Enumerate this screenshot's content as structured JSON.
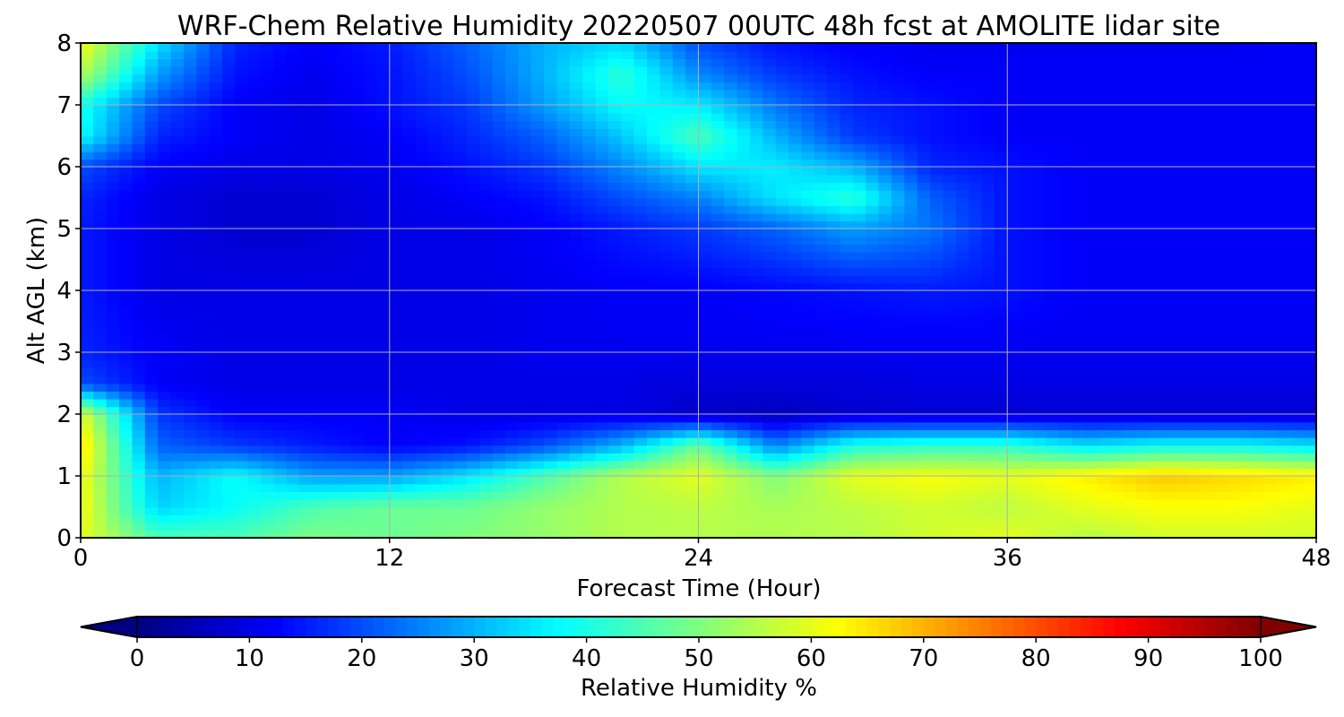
{
  "chart_data": {
    "type": "heatmap",
    "title": "WRF-Chem Relative Humidity 20220507 00UTC 48h fcst at AMOLITE lidar site",
    "xlabel": "Forecast Time (Hour)",
    "ylabel": "Alt AGL (km)",
    "xlim": [
      0,
      48
    ],
    "ylim": [
      0,
      8
    ],
    "xticks": [
      0,
      12,
      24,
      36,
      48
    ],
    "yticks": [
      0,
      1,
      2,
      3,
      4,
      5,
      6,
      7,
      8
    ],
    "grid": true,
    "colormap": "jet",
    "colorbar": {
      "label": "Relative Humidity %",
      "range": [
        0,
        100
      ],
      "ticks": [
        0,
        10,
        20,
        30,
        40,
        50,
        60,
        70,
        80,
        90,
        100
      ],
      "extend": "both",
      "orientation": "horizontal",
      "placement": "bottom"
    },
    "x_hours": [
      0,
      3,
      6,
      9,
      12,
      15,
      18,
      21,
      24,
      27,
      30,
      33,
      36,
      39,
      42,
      45,
      48
    ],
    "y_km": [
      0,
      0.5,
      1,
      1.5,
      2,
      2.5,
      3,
      4,
      5,
      5.5,
      6,
      6.5,
      7,
      7.5,
      8
    ],
    "values": [
      [
        60,
        45,
        45,
        50,
        48,
        50,
        52,
        55,
        55,
        55,
        55,
        58,
        60,
        55,
        58,
        58,
        58
      ],
      [
        62,
        33,
        38,
        45,
        48,
        48,
        52,
        55,
        56,
        54,
        56,
        58,
        56,
        60,
        62,
        62,
        60
      ],
      [
        62,
        30,
        38,
        28,
        28,
        35,
        45,
        55,
        60,
        50,
        60,
        62,
        60,
        64,
        68,
        66,
        64
      ],
      [
        66,
        22,
        18,
        15,
        12,
        14,
        20,
        30,
        48,
        25,
        40,
        42,
        42,
        35,
        38,
        38,
        35
      ],
      [
        60,
        18,
        12,
        12,
        12,
        10,
        10,
        10,
        7,
        6,
        8,
        8,
        8,
        8,
        8,
        8,
        8
      ],
      [
        20,
        12,
        10,
        10,
        10,
        10,
        10,
        10,
        9,
        9,
        9,
        10,
        10,
        10,
        10,
        10,
        10
      ],
      [
        16,
        12,
        10,
        10,
        10,
        10,
        11,
        11,
        11,
        11,
        11,
        11,
        11,
        11,
        11,
        11,
        11
      ],
      [
        15,
        10,
        10,
        10,
        10,
        10,
        11,
        12,
        12,
        13,
        14,
        15,
        14,
        12,
        12,
        12,
        12
      ],
      [
        15,
        10,
        8,
        8,
        10,
        10,
        12,
        15,
        18,
        22,
        28,
        24,
        14,
        12,
        12,
        12,
        12
      ],
      [
        16,
        10,
        8,
        8,
        10,
        12,
        14,
        20,
        25,
        35,
        42,
        22,
        14,
        12,
        12,
        12,
        12
      ],
      [
        20,
        12,
        10,
        10,
        11,
        14,
        18,
        26,
        35,
        36,
        30,
        16,
        14,
        12,
        12,
        12,
        12
      ],
      [
        38,
        16,
        12,
        10,
        12,
        16,
        22,
        32,
        45,
        30,
        18,
        14,
        12,
        12,
        12,
        12,
        12
      ],
      [
        40,
        20,
        12,
        10,
        14,
        18,
        28,
        38,
        36,
        24,
        16,
        14,
        12,
        12,
        12,
        12,
        12
      ],
      [
        55,
        28,
        14,
        11,
        14,
        20,
        30,
        42,
        26,
        18,
        14,
        12,
        12,
        12,
        12,
        12,
        12
      ],
      [
        62,
        35,
        16,
        12,
        15,
        22,
        30,
        34,
        20,
        14,
        12,
        11,
        11,
        11,
        11,
        11,
        12
      ]
    ]
  }
}
